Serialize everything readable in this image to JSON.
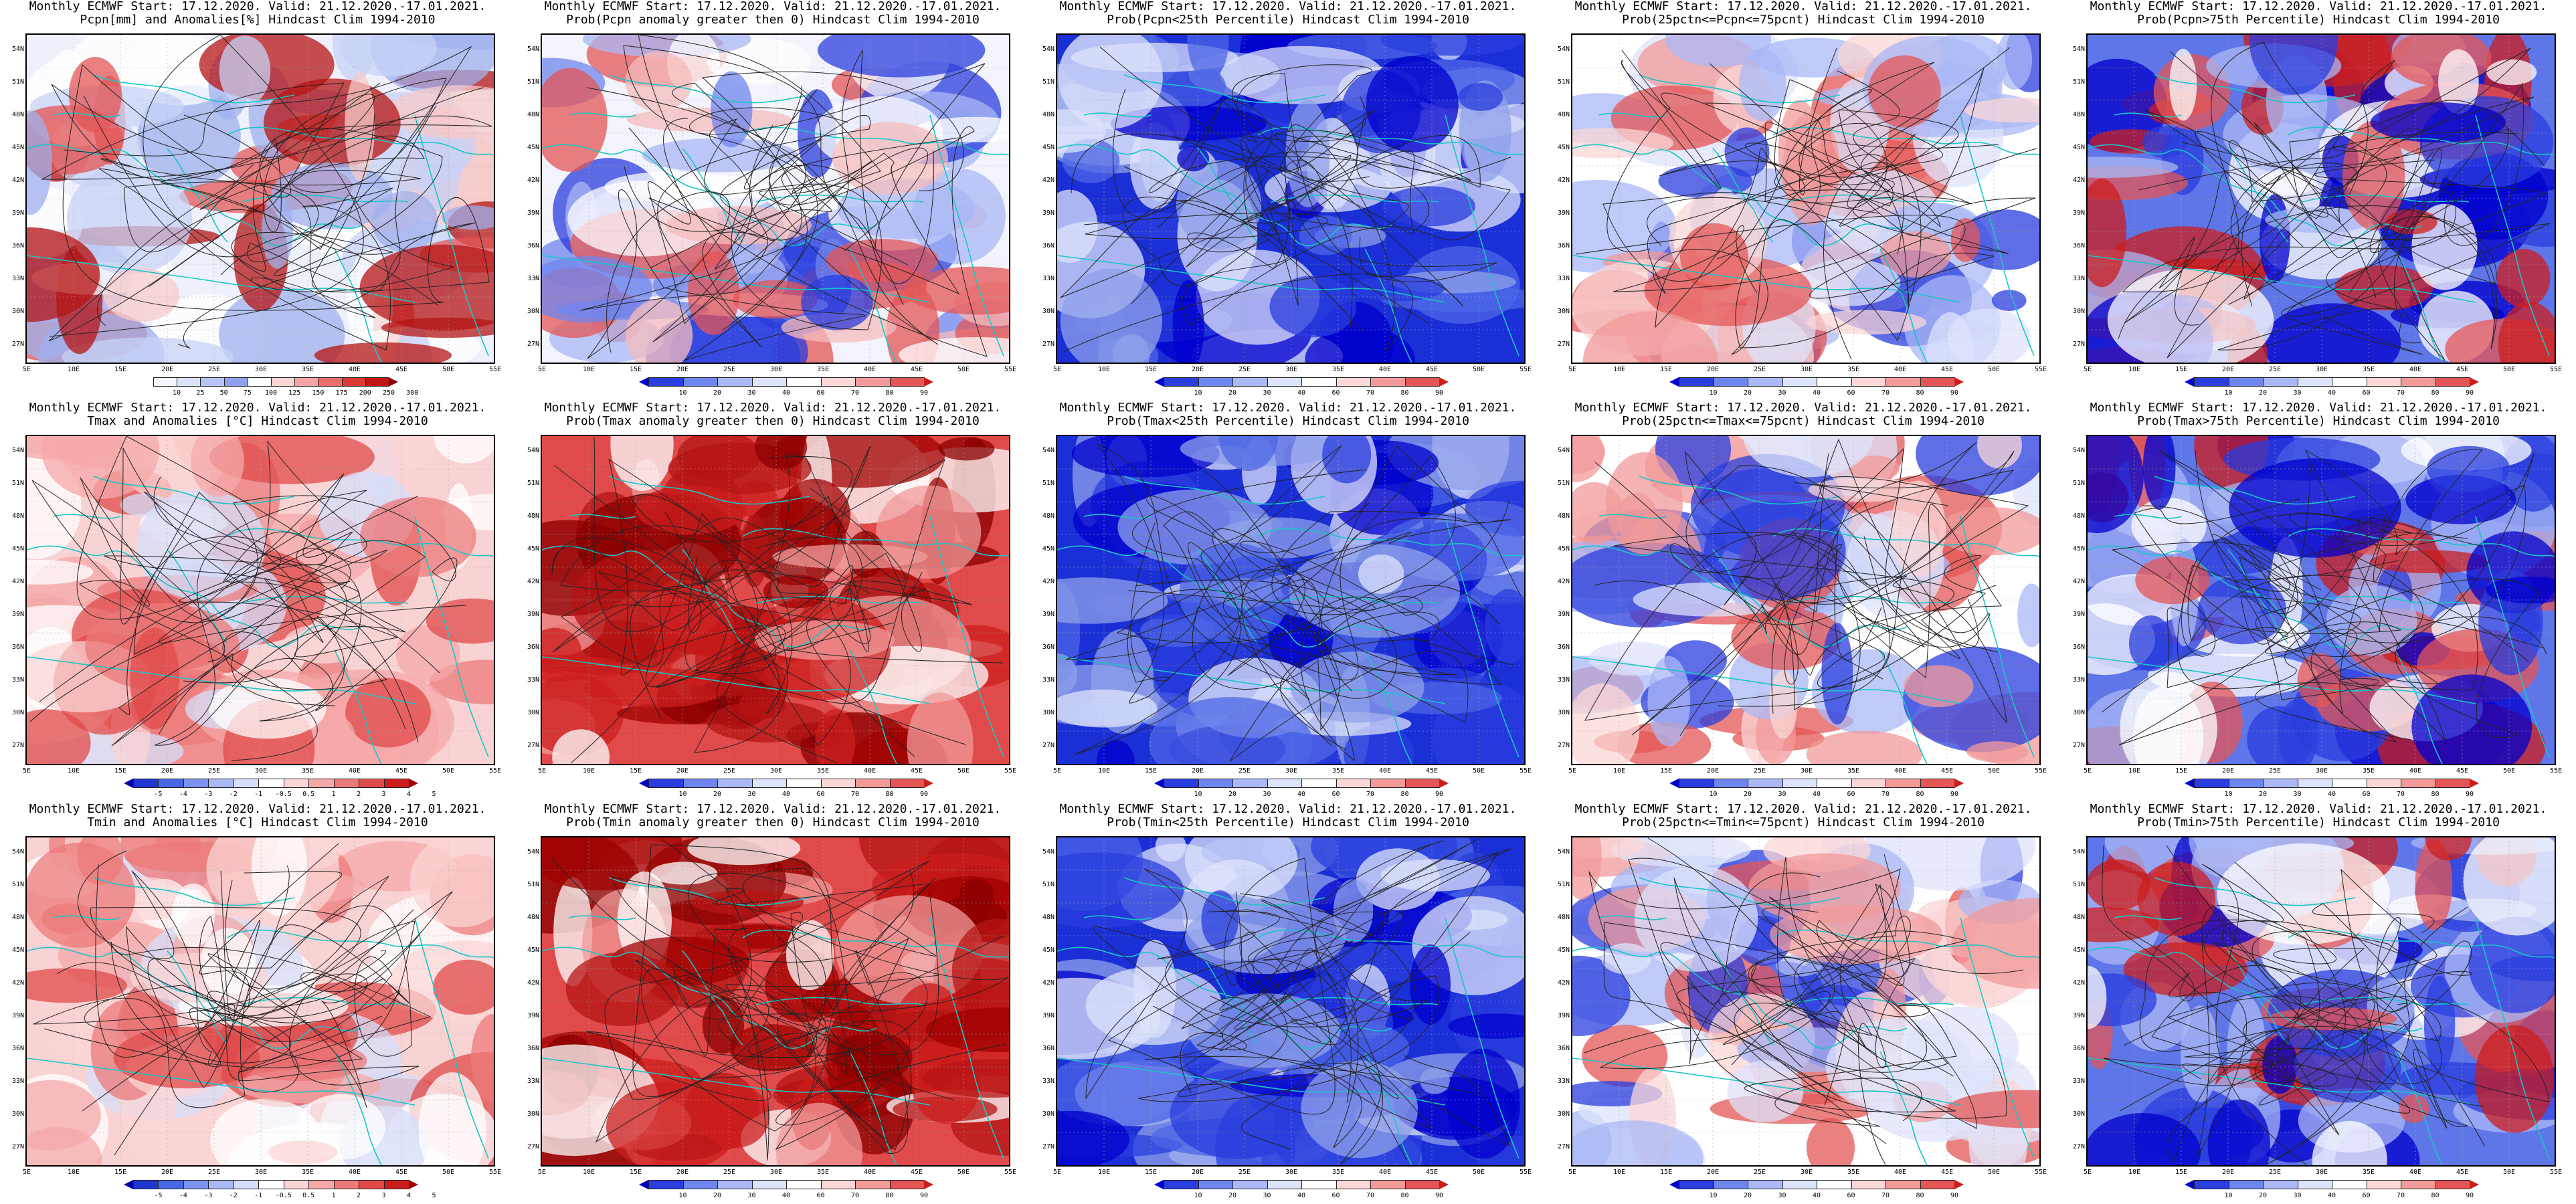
{
  "panels": [
    {
      "id": "p1",
      "title": "Monthly ECMWF Start: 17.12.2020. Valid: 21.12.2020.-17.01.2021.",
      "subtitle": "Pcpn[mm] and Anomalies[%] Hindcast Clim 1994-2010",
      "scheme": "pcpn_anom",
      "cbar": {
        "ticks": [
          "10",
          "25",
          "50",
          "75",
          "100",
          "125",
          "150",
          "175",
          "200",
          "250",
          "300"
        ],
        "colors": [
          "#ffffff",
          "#f3f6ff",
          "#d9e1fb",
          "#b7c3f3",
          "#8fa1ea",
          "#ffffff",
          "#fbd4d4",
          "#f5a3a3",
          "#ec6d6d",
          "#de3838",
          "#c01616",
          "#8b0000"
        ]
      }
    },
    {
      "id": "p2",
      "title": "Monthly ECMWF Start: 17.12.2020. Valid: 21.12.2020.-17.01.2021.",
      "subtitle": "Prob(Pcpn anomaly greater then 0) Hindcast Clim 1994-2010",
      "scheme": "prob",
      "cbar": {
        "ticks": [
          "10",
          "20",
          "30",
          "40",
          "60",
          "70",
          "80",
          "90"
        ],
        "colors": [
          "#0000cc",
          "#2a3dde",
          "#6f86ee",
          "#aab8f6",
          "#dde3fb",
          "#ffffff",
          "#fbd7d7",
          "#f29a9a",
          "#e45656",
          "#cc1d1d"
        ]
      }
    },
    {
      "id": "p3",
      "title": "Monthly ECMWF Start: 17.12.2020. Valid: 21.12.2020.-17.01.2021.",
      "subtitle": "Prob(Pcpn<25th Percentile) Hindcast Clim 1994-2010",
      "scheme": "prob",
      "cbar": {
        "ticks": [
          "10",
          "20",
          "30",
          "40",
          "60",
          "70",
          "80",
          "90"
        ],
        "colors": [
          "#0000cc",
          "#2a3dde",
          "#6f86ee",
          "#aab8f6",
          "#dde3fb",
          "#ffffff",
          "#fbd7d7",
          "#f29a9a",
          "#e45656",
          "#cc1d1d"
        ]
      }
    },
    {
      "id": "p4",
      "title": "Monthly ECMWF Start: 17.12.2020. Valid: 21.12.2020.-17.01.2021.",
      "subtitle": "Prob(25pctn<=Pcpn<=75pcnt) Hindcast Clim 1994-2010",
      "scheme": "prob",
      "cbar": {
        "ticks": [
          "10",
          "20",
          "30",
          "40",
          "60",
          "70",
          "80",
          "90"
        ],
        "colors": [
          "#0000cc",
          "#2a3dde",
          "#6f86ee",
          "#aab8f6",
          "#dde3fb",
          "#ffffff",
          "#fbd7d7",
          "#f29a9a",
          "#e45656",
          "#cc1d1d"
        ]
      }
    },
    {
      "id": "p5",
      "title": "Monthly ECMWF Start: 17.12.2020. Valid: 21.12.2020.-17.01.2021.",
      "subtitle": "Prob(Pcpn>75th Percentile) Hindcast Clim 1994-2010",
      "scheme": "prob",
      "cbar": {
        "ticks": [
          "10",
          "20",
          "30",
          "40",
          "60",
          "70",
          "80",
          "90"
        ],
        "colors": [
          "#0000cc",
          "#2a3dde",
          "#6f86ee",
          "#aab8f6",
          "#dde3fb",
          "#ffffff",
          "#fbd7d7",
          "#f29a9a",
          "#e45656",
          "#cc1d1d"
        ]
      }
    },
    {
      "id": "p6",
      "title": "Monthly ECMWF Start: 17.12.2020. Valid: 21.12.2020.-17.01.2021.",
      "subtitle": "Tmax and Anomalies [°C] Hindcast Clim 1994-2010",
      "scheme": "temp_anom",
      "cbar": {
        "ticks": [
          "-5",
          "-4",
          "-3",
          "-2",
          "-1",
          "-0.5",
          "0.5",
          "1",
          "2",
          "3",
          "4",
          "5"
        ],
        "colors": [
          "#0000aa",
          "#1f36cf",
          "#4a67e3",
          "#7b93ee",
          "#a9b9f5",
          "#d6def9",
          "#ffffff",
          "#fbd6d6",
          "#f5a8a8",
          "#ec7a7a",
          "#e04a4a",
          "#cc1d1d",
          "#a00000"
        ]
      }
    },
    {
      "id": "p7",
      "title": "Monthly ECMWF Start: 17.12.2020. Valid: 21.12.2020.-17.01.2021.",
      "subtitle": "Prob(Tmax anomaly greater then 0) Hindcast Clim 1994-2010",
      "scheme": "prob",
      "cbar": {
        "ticks": [
          "10",
          "20",
          "30",
          "40",
          "60",
          "70",
          "80",
          "90"
        ],
        "colors": [
          "#0000cc",
          "#2a3dde",
          "#6f86ee",
          "#aab8f6",
          "#dde3fb",
          "#ffffff",
          "#fbd7d7",
          "#f29a9a",
          "#e45656",
          "#cc1d1d"
        ]
      }
    },
    {
      "id": "p8",
      "title": "Monthly ECMWF Start: 17.12.2020. Valid: 21.12.2020.-17.01.2021.",
      "subtitle": "Prob(Tmax<25th Percentile) Hindcast Clim 1994-2010",
      "scheme": "prob",
      "cbar": {
        "ticks": [
          "10",
          "20",
          "30",
          "40",
          "60",
          "70",
          "80",
          "90"
        ],
        "colors": [
          "#0000cc",
          "#2a3dde",
          "#6f86ee",
          "#aab8f6",
          "#dde3fb",
          "#ffffff",
          "#fbd7d7",
          "#f29a9a",
          "#e45656",
          "#cc1d1d"
        ]
      }
    },
    {
      "id": "p9",
      "title": "Monthly ECMWF Start: 17.12.2020. Valid: 21.12.2020.-17.01.2021.",
      "subtitle": "Prob(25pctn<=Tmax<=75pcnt) Hindcast Clim 1994-2010",
      "scheme": "prob",
      "cbar": {
        "ticks": [
          "10",
          "20",
          "30",
          "40",
          "60",
          "70",
          "80",
          "90"
        ],
        "colors": [
          "#0000cc",
          "#2a3dde",
          "#6f86ee",
          "#aab8f6",
          "#dde3fb",
          "#ffffff",
          "#fbd7d7",
          "#f29a9a",
          "#e45656",
          "#cc1d1d"
        ]
      }
    },
    {
      "id": "p10",
      "title": "Monthly ECMWF Start: 17.12.2020. Valid: 21.12.2020.-17.01.2021.",
      "subtitle": "Prob(Tmax>75th Percentile) Hindcast Clim 1994-2010",
      "scheme": "prob",
      "cbar": {
        "ticks": [
          "10",
          "20",
          "30",
          "40",
          "60",
          "70",
          "80",
          "90"
        ],
        "colors": [
          "#0000cc",
          "#2a3dde",
          "#6f86ee",
          "#aab8f6",
          "#dde3fb",
          "#ffffff",
          "#fbd7d7",
          "#f29a9a",
          "#e45656",
          "#cc1d1d"
        ]
      }
    },
    {
      "id": "p11",
      "title": "Monthly ECMWF Start: 17.12.2020. Valid: 21.12.2020.-17.01.2021.",
      "subtitle": "Tmin and Anomalies [°C] Hindcast Clim 1994-2010",
      "scheme": "temp_anom",
      "cbar": {
        "ticks": [
          "-5",
          "-4",
          "-3",
          "-2",
          "-1",
          "-0.5",
          "0.5",
          "1",
          "2",
          "3",
          "4",
          "5"
        ],
        "colors": [
          "#0000aa",
          "#1f36cf",
          "#4a67e3",
          "#7b93ee",
          "#a9b9f5",
          "#d6def9",
          "#ffffff",
          "#fbd6d6",
          "#f5a8a8",
          "#ec7a7a",
          "#e04a4a",
          "#cc1d1d",
          "#a00000"
        ]
      }
    },
    {
      "id": "p12",
      "title": "Monthly ECMWF Start: 17.12.2020. Valid: 21.12.2020.-17.01.2021.",
      "subtitle": "Prob(Tmin anomaly greater then 0) Hindcast Clim 1994-2010",
      "scheme": "prob",
      "cbar": {
        "ticks": [
          "10",
          "20",
          "30",
          "40",
          "60",
          "70",
          "80",
          "90"
        ],
        "colors": [
          "#0000cc",
          "#2a3dde",
          "#6f86ee",
          "#aab8f6",
          "#dde3fb",
          "#ffffff",
          "#fbd7d7",
          "#f29a9a",
          "#e45656",
          "#cc1d1d"
        ]
      }
    },
    {
      "id": "p13",
      "title": "Monthly ECMWF Start: 17.12.2020. Valid: 21.12.2020.-17.01.2021.",
      "subtitle": "Prob(Tmin<25th Percentile) Hindcast Clim 1994-2010",
      "scheme": "prob",
      "cbar": {
        "ticks": [
          "10",
          "20",
          "30",
          "40",
          "60",
          "70",
          "80",
          "90"
        ],
        "colors": [
          "#0000cc",
          "#2a3dde",
          "#6f86ee",
          "#aab8f6",
          "#dde3fb",
          "#ffffff",
          "#fbd7d7",
          "#f29a9a",
          "#e45656",
          "#cc1d1d"
        ]
      }
    },
    {
      "id": "p14",
      "title": "Monthly ECMWF Start: 17.12.2020. Valid: 21.12.2020.-17.01.2021.",
      "subtitle": "Prob(25pctn<=Tmin<=75pcnt) Hindcast Clim 1994-2010",
      "scheme": "prob",
      "cbar": {
        "ticks": [
          "10",
          "20",
          "30",
          "40",
          "60",
          "70",
          "80",
          "90"
        ],
        "colors": [
          "#0000cc",
          "#2a3dde",
          "#6f86ee",
          "#aab8f6",
          "#dde3fb",
          "#ffffff",
          "#fbd7d7",
          "#f29a9a",
          "#e45656",
          "#cc1d1d"
        ]
      }
    },
    {
      "id": "p15",
      "title": "Monthly ECMWF Start: 17.12.2020. Valid: 21.12.2020.-17.01.2021.",
      "subtitle": "Prob(Tmin>75th Percentile) Hindcast Clim 1994-2010",
      "scheme": "prob",
      "cbar": {
        "ticks": [
          "10",
          "20",
          "30",
          "40",
          "60",
          "70",
          "80",
          "90"
        ],
        "colors": [
          "#0000cc",
          "#2a3dde",
          "#6f86ee",
          "#aab8f6",
          "#dde3fb",
          "#ffffff",
          "#fbd7d7",
          "#f29a9a",
          "#e45656",
          "#cc1d1d"
        ]
      }
    }
  ],
  "axes": {
    "lat_labels": [
      "54N",
      "51N",
      "48N",
      "45N",
      "42N",
      "39N",
      "36N",
      "33N",
      "30N",
      "27N"
    ],
    "lon_labels": [
      "5E",
      "10E",
      "15E",
      "20E",
      "25E",
      "30E",
      "35E",
      "40E",
      "45E",
      "50E",
      "55E"
    ]
  },
  "colors": {
    "coast": "#19c6c6",
    "contour": "#222222",
    "frame": "#000000"
  }
}
